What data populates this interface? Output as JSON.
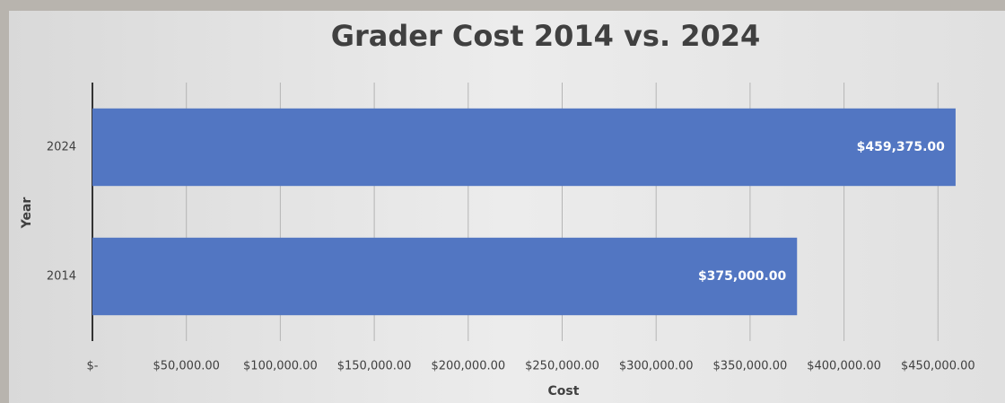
{
  "chart_data": {
    "type": "bar",
    "orientation": "horizontal",
    "title": "Grader Cost 2014 vs. 2024",
    "x_label": "Cost",
    "y_label": "Year",
    "categories": [
      "2024",
      "2014"
    ],
    "values": [
      459375,
      375000
    ],
    "value_labels": [
      "$459,375.00",
      "$375,000.00"
    ],
    "color": "#5276c2",
    "xlim": [
      0,
      500000
    ],
    "xticks": [
      {
        "value": 0,
        "label": "$-"
      },
      {
        "value": 50000,
        "label": "$50,000.00"
      },
      {
        "value": 100000,
        "label": "$100,000.00"
      },
      {
        "value": 150000,
        "label": "$150,000.00"
      },
      {
        "value": 200000,
        "label": "$200,000.00"
      },
      {
        "value": 250000,
        "label": "$250,000.00"
      },
      {
        "value": 300000,
        "label": "$300,000.00"
      },
      {
        "value": 350000,
        "label": "$350,000.00"
      },
      {
        "value": 400000,
        "label": "$400,000.00"
      },
      {
        "value": 450000,
        "label": "$450,000.00"
      }
    ],
    "grid": true
  }
}
